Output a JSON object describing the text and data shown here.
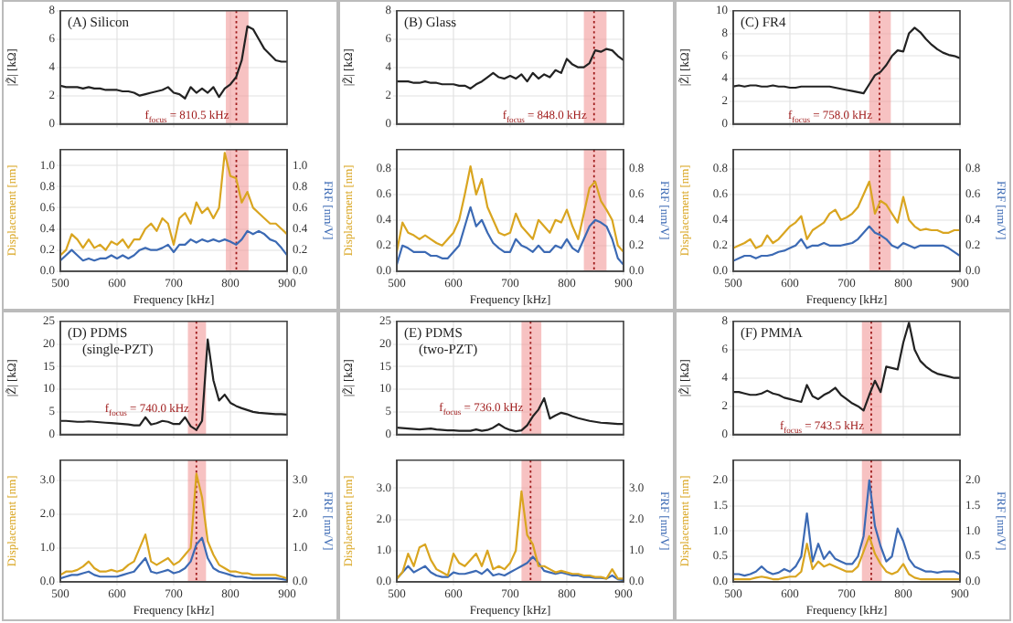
{
  "chart_data": [
    {
      "type": "line",
      "title": "(A) Silicon",
      "ylabel": "|Z̃| [kΩ]",
      "x": [
        500,
        510,
        520,
        530,
        540,
        550,
        560,
        570,
        580,
        590,
        600,
        610,
        620,
        630,
        640,
        650,
        660,
        670,
        680,
        690,
        700,
        710,
        720,
        730,
        740,
        750,
        760,
        770,
        780,
        790,
        800,
        810,
        820,
        830,
        840,
        850,
        860,
        870,
        880,
        890,
        900
      ],
      "values": [
        2.7,
        2.6,
        2.6,
        2.6,
        2.5,
        2.6,
        2.5,
        2.5,
        2.4,
        2.4,
        2.4,
        2.3,
        2.3,
        2.2,
        2.0,
        2.1,
        2.2,
        2.3,
        2.4,
        2.6,
        2.2,
        2.1,
        1.8,
        2.6,
        2.2,
        2.5,
        2.2,
        2.6,
        1.9,
        2.5,
        2.8,
        3.3,
        4.5,
        6.9,
        6.7,
        6.0,
        5.3,
        4.9,
        4.5,
        4.4,
        4.4
      ],
      "color": "#222222",
      "xlim": [
        500,
        900
      ],
      "xticks": [
        500,
        600,
        700,
        800,
        900
      ],
      "ylim": [
        0,
        8
      ],
      "yticks": [
        0,
        2,
        4,
        6,
        8
      ],
      "tick_labels": "y",
      "grid": true,
      "bands": [
        {
          "axis": "x",
          "from": 792,
          "to": 832,
          "color": "#f29a9a"
        }
      ],
      "ref_lines": [
        {
          "axis": "x",
          "value": 810.5,
          "label": "f$_{focus}$ = 810.5 kHz",
          "color": "#a01c1c",
          "line_style": "dotted"
        }
      ]
    },
    {
      "type": "line",
      "xlabel": "Frequency [kHz]",
      "ylabel": "Displacement [nm]",
      "y2label": "FRF [nm/V]",
      "x": [
        500,
        510,
        520,
        530,
        540,
        550,
        560,
        570,
        580,
        590,
        600,
        610,
        620,
        630,
        640,
        650,
        660,
        670,
        680,
        690,
        700,
        710,
        720,
        730,
        740,
        750,
        760,
        770,
        780,
        790,
        800,
        810,
        820,
        830,
        840,
        850,
        860,
        870,
        880,
        890,
        900
      ],
      "series": [
        {
          "color": "#d9a520",
          "values": [
            0.15,
            0.2,
            0.35,
            0.3,
            0.22,
            0.3,
            0.22,
            0.25,
            0.2,
            0.28,
            0.25,
            0.3,
            0.22,
            0.3,
            0.3,
            0.4,
            0.45,
            0.38,
            0.5,
            0.45,
            0.25,
            0.5,
            0.55,
            0.45,
            0.65,
            0.55,
            0.6,
            0.5,
            0.6,
            1.12,
            0.9,
            0.88,
            0.65,
            0.75,
            0.6,
            0.55,
            0.5,
            0.45,
            0.45,
            0.4,
            0.35
          ]
        },
        {
          "color": "#3c6ab4",
          "axis": "y2",
          "values": [
            0.1,
            0.15,
            0.2,
            0.15,
            0.1,
            0.12,
            0.1,
            0.12,
            0.12,
            0.15,
            0.12,
            0.15,
            0.12,
            0.15,
            0.2,
            0.22,
            0.2,
            0.2,
            0.22,
            0.25,
            0.18,
            0.25,
            0.25,
            0.3,
            0.27,
            0.3,
            0.28,
            0.3,
            0.28,
            0.3,
            0.28,
            0.25,
            0.3,
            0.38,
            0.35,
            0.38,
            0.35,
            0.3,
            0.28,
            0.22,
            0.15
          ]
        }
      ],
      "xlim": [
        500,
        900
      ],
      "xticks": [
        500,
        600,
        700,
        800,
        900
      ],
      "ylim": [
        0,
        1.15
      ],
      "yticks": [
        {
          "value": 0,
          "label": "0.0"
        },
        {
          "value": 0.2,
          "label": "0.2"
        },
        {
          "value": 0.4,
          "label": "0.4"
        },
        {
          "value": 0.6,
          "label": "0.6"
        },
        {
          "value": 0.8,
          "label": "0.8"
        },
        {
          "value": 1,
          "label": "1.0"
        }
      ],
      "y2lim": [
        0,
        1.15
      ],
      "y2ticks": [
        {
          "value": 0,
          "label": "0.0"
        },
        {
          "value": 0.2,
          "label": "0.2"
        },
        {
          "value": 0.4,
          "label": "0.4"
        },
        {
          "value": 0.6,
          "label": "0.6"
        },
        {
          "value": 0.8,
          "label": "0.8"
        },
        {
          "value": 1,
          "label": "1.0"
        }
      ],
      "grid": true,
      "bands": [
        {
          "axis": "x",
          "from": 792,
          "to": 832,
          "color": "#f29a9a"
        }
      ],
      "ref_lines": [
        {
          "axis": "x",
          "value": 810.5,
          "color": "#a01c1c",
          "line_style": "dotted"
        }
      ]
    },
    {
      "type": "line",
      "title": "(B) Glass",
      "ylabel": "|Z̃| [kΩ]",
      "x": [
        500,
        510,
        520,
        530,
        540,
        550,
        560,
        570,
        580,
        590,
        600,
        610,
        620,
        630,
        640,
        650,
        660,
        670,
        680,
        690,
        700,
        710,
        720,
        730,
        740,
        750,
        760,
        770,
        780,
        790,
        800,
        810,
        820,
        830,
        840,
        850,
        860,
        870,
        880,
        890,
        900
      ],
      "values": [
        3.0,
        3.0,
        3.0,
        2.9,
        2.9,
        3.0,
        2.9,
        2.9,
        2.8,
        2.8,
        2.8,
        2.7,
        2.7,
        2.5,
        2.8,
        3.0,
        3.3,
        3.6,
        3.3,
        3.2,
        3.4,
        3.2,
        3.5,
        3.0,
        3.6,
        3.2,
        3.5,
        3.3,
        3.8,
        3.6,
        4.6,
        4.2,
        4.0,
        4.0,
        4.3,
        5.2,
        5.1,
        5.3,
        5.2,
        4.8,
        4.5
      ],
      "color": "#222222",
      "xlim": [
        500,
        900
      ],
      "xticks": [
        500,
        600,
        700,
        800,
        900
      ],
      "ylim": [
        0,
        8
      ],
      "yticks": [
        0,
        2,
        4,
        6,
        8
      ],
      "tick_labels": "y",
      "grid": true,
      "bands": [
        {
          "axis": "x",
          "from": 830,
          "to": 870,
          "color": "#f29a9a"
        }
      ],
      "ref_lines": [
        {
          "axis": "x",
          "value": 848.0,
          "label": "f$_{focus}$ = 848.0 kHz",
          "color": "#a01c1c",
          "line_style": "dotted"
        }
      ]
    },
    {
      "type": "line",
      "xlabel": "Frequency [kHz]",
      "ylabel": "Displacement [nm]",
      "y2label": "FRF [nm/V]",
      "x": [
        500,
        510,
        520,
        530,
        540,
        550,
        560,
        570,
        580,
        590,
        600,
        610,
        620,
        630,
        640,
        650,
        660,
        670,
        680,
        690,
        700,
        710,
        720,
        730,
        740,
        750,
        760,
        770,
        780,
        790,
        800,
        810,
        820,
        830,
        840,
        850,
        860,
        870,
        880,
        890,
        900
      ],
      "series": [
        {
          "color": "#d9a520",
          "values": [
            0.15,
            0.38,
            0.3,
            0.28,
            0.25,
            0.28,
            0.25,
            0.22,
            0.2,
            0.25,
            0.3,
            0.4,
            0.6,
            0.82,
            0.6,
            0.72,
            0.5,
            0.4,
            0.3,
            0.28,
            0.3,
            0.45,
            0.35,
            0.3,
            0.25,
            0.4,
            0.35,
            0.3,
            0.4,
            0.38,
            0.48,
            0.35,
            0.25,
            0.45,
            0.65,
            0.7,
            0.55,
            0.48,
            0.4,
            0.2,
            0.15
          ]
        },
        {
          "color": "#3c6ab4",
          "axis": "y2",
          "values": [
            0.05,
            0.2,
            0.18,
            0.15,
            0.15,
            0.15,
            0.12,
            0.12,
            0.1,
            0.1,
            0.15,
            0.2,
            0.35,
            0.5,
            0.35,
            0.4,
            0.3,
            0.22,
            0.18,
            0.15,
            0.15,
            0.25,
            0.2,
            0.18,
            0.15,
            0.2,
            0.15,
            0.15,
            0.2,
            0.18,
            0.25,
            0.18,
            0.15,
            0.25,
            0.35,
            0.4,
            0.38,
            0.35,
            0.25,
            0.1,
            0.05
          ]
        }
      ],
      "xlim": [
        500,
        900
      ],
      "xticks": [
        500,
        600,
        700,
        800,
        900
      ],
      "ylim": [
        0,
        0.95
      ],
      "yticks": [
        {
          "value": 0,
          "label": "0.0"
        },
        {
          "value": 0.2,
          "label": "0.2"
        },
        {
          "value": 0.4,
          "label": "0.4"
        },
        {
          "value": 0.6,
          "label": "0.6"
        },
        {
          "value": 0.8,
          "label": "0.8"
        }
      ],
      "y2lim": [
        0,
        0.95
      ],
      "y2ticks": [
        {
          "value": 0,
          "label": "0.0"
        },
        {
          "value": 0.2,
          "label": "0.2"
        },
        {
          "value": 0.4,
          "label": "0.4"
        },
        {
          "value": 0.6,
          "label": "0.6"
        },
        {
          "value": 0.8,
          "label": "0.8"
        }
      ],
      "grid": true,
      "bands": [
        {
          "axis": "x",
          "from": 830,
          "to": 870,
          "color": "#f29a9a"
        }
      ],
      "ref_lines": [
        {
          "axis": "x",
          "value": 848.0,
          "color": "#a01c1c",
          "line_style": "dotted"
        }
      ]
    },
    {
      "type": "line",
      "title": "(C) FR4",
      "ylabel": "|Z̃| [kΩ]",
      "x": [
        500,
        510,
        520,
        530,
        540,
        550,
        560,
        570,
        580,
        590,
        600,
        610,
        620,
        630,
        640,
        650,
        660,
        670,
        680,
        690,
        700,
        710,
        720,
        730,
        740,
        750,
        760,
        770,
        780,
        790,
        800,
        810,
        820,
        830,
        840,
        850,
        860,
        870,
        880,
        890,
        900
      ],
      "values": [
        3.3,
        3.4,
        3.3,
        3.4,
        3.4,
        3.3,
        3.3,
        3.4,
        3.3,
        3.3,
        3.2,
        3.2,
        3.3,
        3.3,
        3.3,
        3.3,
        3.3,
        3.3,
        3.2,
        3.1,
        3.0,
        2.9,
        2.8,
        2.7,
        3.5,
        4.3,
        4.6,
        5.2,
        6.0,
        6.5,
        6.4,
        8.0,
        8.5,
        8.1,
        7.5,
        7.0,
        6.6,
        6.3,
        6.1,
        6.0,
        5.8
      ],
      "color": "#222222",
      "xlim": [
        500,
        900
      ],
      "xticks": [
        500,
        600,
        700,
        800,
        900
      ],
      "ylim": [
        0,
        10
      ],
      "yticks": [
        0,
        2,
        4,
        6,
        8,
        10
      ],
      "tick_labels": "y",
      "grid": true,
      "bands": [
        {
          "axis": "x",
          "from": 740,
          "to": 778,
          "color": "#f29a9a"
        }
      ],
      "ref_lines": [
        {
          "axis": "x",
          "value": 758.0,
          "label": "f$_{focus}$ = 758.0 kHz",
          "color": "#a01c1c",
          "line_style": "dotted"
        }
      ]
    },
    {
      "type": "line",
      "xlabel": "Frequency [kHz]",
      "ylabel": "Displacement [nm]",
      "y2label": "FRF [nm/V]",
      "x": [
        500,
        510,
        520,
        530,
        540,
        550,
        560,
        570,
        580,
        590,
        600,
        610,
        620,
        630,
        640,
        650,
        660,
        670,
        680,
        690,
        700,
        710,
        720,
        730,
        740,
        750,
        760,
        770,
        780,
        790,
        800,
        810,
        820,
        830,
        840,
        850,
        860,
        870,
        880,
        890,
        900
      ],
      "series": [
        {
          "color": "#d9a520",
          "values": [
            0.18,
            0.2,
            0.22,
            0.25,
            0.18,
            0.2,
            0.28,
            0.22,
            0.25,
            0.3,
            0.35,
            0.38,
            0.43,
            0.25,
            0.32,
            0.35,
            0.38,
            0.45,
            0.48,
            0.4,
            0.42,
            0.45,
            0.5,
            0.6,
            0.7,
            0.45,
            0.55,
            0.52,
            0.45,
            0.38,
            0.58,
            0.4,
            0.35,
            0.32,
            0.33,
            0.32,
            0.32,
            0.3,
            0.3,
            0.32,
            0.32
          ]
        },
        {
          "color": "#3c6ab4",
          "axis": "y2",
          "values": [
            0.08,
            0.1,
            0.12,
            0.12,
            0.1,
            0.12,
            0.12,
            0.13,
            0.15,
            0.16,
            0.18,
            0.2,
            0.25,
            0.18,
            0.2,
            0.2,
            0.22,
            0.2,
            0.2,
            0.2,
            0.21,
            0.22,
            0.25,
            0.3,
            0.35,
            0.3,
            0.28,
            0.25,
            0.2,
            0.18,
            0.22,
            0.2,
            0.18,
            0.2,
            0.2,
            0.2,
            0.2,
            0.2,
            0.18,
            0.15,
            0.12
          ]
        }
      ],
      "xlim": [
        500,
        900
      ],
      "xticks": [
        500,
        600,
        700,
        800,
        900
      ],
      "ylim": [
        0,
        0.95
      ],
      "yticks": [
        {
          "value": 0,
          "label": "0.0"
        },
        {
          "value": 0.2,
          "label": "0.2"
        },
        {
          "value": 0.4,
          "label": "0.4"
        },
        {
          "value": 0.6,
          "label": "0.6"
        },
        {
          "value": 0.8,
          "label": "0.8"
        }
      ],
      "y2lim": [
        0,
        0.95
      ],
      "y2ticks": [
        {
          "value": 0,
          "label": "0.0"
        },
        {
          "value": 0.2,
          "label": "0.2"
        },
        {
          "value": 0.4,
          "label": "0.4"
        },
        {
          "value": 0.6,
          "label": "0.6"
        },
        {
          "value": 0.8,
          "label": "0.8"
        }
      ],
      "grid": true,
      "bands": [
        {
          "axis": "x",
          "from": 740,
          "to": 778,
          "color": "#f29a9a"
        }
      ],
      "ref_lines": [
        {
          "axis": "x",
          "value": 758.0,
          "color": "#a01c1c",
          "line_style": "dotted"
        }
      ]
    },
    {
      "type": "line",
      "title": "(D) PDMS (single-PZT)",
      "ylabel": "|Z̃| [kΩ]",
      "x": [
        500,
        510,
        520,
        530,
        540,
        550,
        560,
        570,
        580,
        590,
        600,
        610,
        620,
        630,
        640,
        650,
        660,
        670,
        680,
        690,
        700,
        710,
        720,
        730,
        740,
        750,
        760,
        770,
        780,
        790,
        800,
        810,
        820,
        830,
        840,
        850,
        860,
        870,
        880,
        890,
        900
      ],
      "values": [
        3.0,
        3.0,
        2.9,
        2.8,
        2.8,
        2.9,
        2.8,
        2.7,
        2.6,
        2.5,
        2.4,
        2.3,
        2.2,
        2.0,
        2.0,
        3.8,
        2.2,
        2.5,
        3.0,
        2.8,
        2.3,
        2.3,
        3.8,
        1.8,
        1.0,
        3.0,
        21.0,
        12.0,
        7.5,
        8.8,
        7.0,
        6.3,
        5.8,
        5.4,
        5.0,
        4.8,
        4.7,
        4.6,
        4.5,
        4.5,
        4.4
      ],
      "color": "#222222",
      "xlim": [
        500,
        900
      ],
      "xticks": [
        500,
        600,
        700,
        800,
        900
      ],
      "ylim": [
        0,
        25
      ],
      "yticks": [
        0,
        5,
        10,
        15,
        20,
        25
      ],
      "tick_labels": "y",
      "grid": true,
      "bands": [
        {
          "axis": "x",
          "from": 725,
          "to": 757,
          "color": "#f29a9a"
        }
      ],
      "ref_lines": [
        {
          "axis": "x",
          "value": 740.0,
          "label": "f$_{focus}$ = 740.0 kHz",
          "color": "#a01c1c",
          "line_style": "dotted"
        }
      ]
    },
    {
      "type": "line",
      "xlabel": "Frequency [kHz]",
      "ylabel": "Displacement [nm]",
      "y2label": "FRF [nm/V]",
      "x": [
        500,
        510,
        520,
        530,
        540,
        550,
        560,
        570,
        580,
        590,
        600,
        610,
        620,
        630,
        640,
        650,
        660,
        670,
        680,
        690,
        700,
        710,
        720,
        730,
        740,
        750,
        760,
        770,
        780,
        790,
        800,
        810,
        820,
        830,
        840,
        850,
        860,
        870,
        880,
        890,
        900
      ],
      "series": [
        {
          "color": "#d9a520",
          "values": [
            0.2,
            0.3,
            0.3,
            0.35,
            0.45,
            0.6,
            0.4,
            0.3,
            0.3,
            0.35,
            0.3,
            0.35,
            0.5,
            0.6,
            1.0,
            1.4,
            0.6,
            0.5,
            0.6,
            0.7,
            0.5,
            0.6,
            0.8,
            1.0,
            3.2,
            2.5,
            1.2,
            0.8,
            0.5,
            0.4,
            0.3,
            0.3,
            0.25,
            0.25,
            0.2,
            0.2,
            0.2,
            0.2,
            0.2,
            0.15,
            0.1
          ]
        },
        {
          "color": "#3c6ab4",
          "axis": "y2",
          "values": [
            0.1,
            0.15,
            0.2,
            0.2,
            0.25,
            0.3,
            0.2,
            0.15,
            0.15,
            0.15,
            0.15,
            0.2,
            0.25,
            0.3,
            0.5,
            0.7,
            0.3,
            0.25,
            0.3,
            0.35,
            0.25,
            0.3,
            0.4,
            0.6,
            1.1,
            1.3,
            0.7,
            0.4,
            0.3,
            0.25,
            0.2,
            0.15,
            0.15,
            0.12,
            0.1,
            0.1,
            0.1,
            0.1,
            0.1,
            0.08,
            0.05
          ]
        }
      ],
      "xlim": [
        500,
        900
      ],
      "xticks": [
        500,
        600,
        700,
        800,
        900
      ],
      "ylim": [
        0,
        3.6
      ],
      "yticks": [
        {
          "value": 0,
          "label": "0.0"
        },
        {
          "value": 1,
          "label": "1.0"
        },
        {
          "value": 2,
          "label": "2.0"
        },
        {
          "value": 3,
          "label": "3.0"
        }
      ],
      "y2lim": [
        0,
        3.6
      ],
      "y2ticks": [
        {
          "value": 0,
          "label": "0.0"
        },
        {
          "value": 1,
          "label": "1.0"
        },
        {
          "value": 2,
          "label": "2.0"
        },
        {
          "value": 3,
          "label": "3.0"
        }
      ],
      "grid": true,
      "bands": [
        {
          "axis": "x",
          "from": 725,
          "to": 757,
          "color": "#f29a9a"
        }
      ],
      "ref_lines": [
        {
          "axis": "x",
          "value": 740.0,
          "color": "#a01c1c",
          "line_style": "dotted"
        }
      ]
    },
    {
      "type": "line",
      "title": "(E) PDMS (two-PZT)",
      "ylabel": "|Z̃| [kΩ]",
      "x": [
        500,
        510,
        520,
        530,
        540,
        550,
        560,
        570,
        580,
        590,
        600,
        610,
        620,
        630,
        640,
        650,
        660,
        670,
        680,
        690,
        700,
        710,
        720,
        730,
        740,
        750,
        760,
        770,
        780,
        790,
        800,
        810,
        820,
        830,
        840,
        850,
        860,
        870,
        880,
        890,
        900
      ],
      "values": [
        1.5,
        1.4,
        1.3,
        1.2,
        1.1,
        1.2,
        1.3,
        1.1,
        1.0,
        0.9,
        0.9,
        0.8,
        0.8,
        0.8,
        1.1,
        0.8,
        1.0,
        1.5,
        2.3,
        1.5,
        1.0,
        0.7,
        0.9,
        2.0,
        4.0,
        5.5,
        8.0,
        3.5,
        4.2,
        4.8,
        4.5,
        4.0,
        3.6,
        3.3,
        3.0,
        2.8,
        2.6,
        2.5,
        2.4,
        2.3,
        2.3
      ],
      "color": "#222222",
      "xlim": [
        500,
        900
      ],
      "xticks": [
        500,
        600,
        700,
        800,
        900
      ],
      "ylim": [
        0,
        25
      ],
      "yticks": [
        0,
        5,
        10,
        15,
        20,
        25
      ],
      "tick_labels": "y",
      "grid": true,
      "bands": [
        {
          "axis": "x",
          "from": 720,
          "to": 755,
          "color": "#f29a9a"
        }
      ],
      "ref_lines": [
        {
          "axis": "x",
          "value": 736.0,
          "label": "f$_{focus}$ = 736.0 kHz",
          "color": "#a01c1c",
          "line_style": "dotted"
        }
      ]
    },
    {
      "type": "line",
      "xlabel": "Frequency [kHz]",
      "ylabel": "Displacement [nm]",
      "y2label": "FRF [nm/V]",
      "x": [
        500,
        510,
        520,
        530,
        540,
        550,
        560,
        570,
        580,
        590,
        600,
        610,
        620,
        630,
        640,
        650,
        660,
        670,
        680,
        690,
        700,
        710,
        720,
        730,
        740,
        750,
        760,
        770,
        780,
        790,
        800,
        810,
        820,
        830,
        840,
        850,
        860,
        870,
        880,
        890,
        900
      ],
      "series": [
        {
          "color": "#d9a520",
          "values": [
            0.1,
            0.3,
            0.9,
            0.5,
            1.1,
            1.2,
            0.7,
            0.4,
            0.3,
            0.2,
            0.9,
            0.6,
            0.5,
            0.7,
            0.9,
            0.5,
            1.0,
            0.4,
            0.5,
            0.4,
            0.6,
            1.0,
            2.9,
            1.5,
            1.2,
            0.5,
            0.5,
            0.4,
            0.3,
            0.35,
            0.3,
            0.25,
            0.25,
            0.2,
            0.2,
            0.15,
            0.15,
            0.1,
            0.4,
            0.1,
            0.1
          ]
        },
        {
          "color": "#3c6ab4",
          "axis": "y2",
          "values": [
            0.1,
            0.3,
            0.5,
            0.3,
            0.4,
            0.5,
            0.3,
            0.2,
            0.15,
            0.15,
            0.3,
            0.25,
            0.25,
            0.3,
            0.35,
            0.25,
            0.4,
            0.2,
            0.25,
            0.2,
            0.3,
            0.4,
            0.5,
            0.6,
            0.8,
            0.6,
            0.35,
            0.3,
            0.25,
            0.3,
            0.25,
            0.2,
            0.2,
            0.15,
            0.15,
            0.12,
            0.12,
            0.1,
            0.2,
            0.08,
            0.05
          ]
        }
      ],
      "xlim": [
        500,
        900
      ],
      "xticks": [
        500,
        600,
        700,
        800,
        900
      ],
      "ylim": [
        0,
        3.9
      ],
      "yticks": [
        {
          "value": 0,
          "label": "0.0"
        },
        {
          "value": 1,
          "label": "1.0"
        },
        {
          "value": 2,
          "label": "2.0"
        },
        {
          "value": 3,
          "label": "3.0"
        }
      ],
      "y2lim": [
        0,
        3.9
      ],
      "y2ticks": [
        {
          "value": 0,
          "label": "0.0"
        },
        {
          "value": 1,
          "label": "1.0"
        },
        {
          "value": 2,
          "label": "2.0"
        },
        {
          "value": 3,
          "label": "3.0"
        }
      ],
      "grid": true,
      "bands": [
        {
          "axis": "x",
          "from": 720,
          "to": 755,
          "color": "#f29a9a"
        }
      ],
      "ref_lines": [
        {
          "axis": "x",
          "value": 736.0,
          "color": "#a01c1c",
          "line_style": "dotted"
        }
      ]
    },
    {
      "type": "line",
      "title": "(F) PMMA",
      "ylabel": "|Z̃| [kΩ]",
      "x": [
        500,
        510,
        520,
        530,
        540,
        550,
        560,
        570,
        580,
        590,
        600,
        610,
        620,
        630,
        640,
        650,
        660,
        670,
        680,
        690,
        700,
        710,
        720,
        730,
        740,
        750,
        760,
        770,
        780,
        790,
        800,
        810,
        820,
        830,
        840,
        850,
        860,
        870,
        880,
        890,
        900
      ],
      "values": [
        3.0,
        3.0,
        2.9,
        2.8,
        2.8,
        2.9,
        3.1,
        2.9,
        2.8,
        2.6,
        2.5,
        2.4,
        2.3,
        3.5,
        2.7,
        2.5,
        2.8,
        3.0,
        3.3,
        2.8,
        2.5,
        2.2,
        2.0,
        1.7,
        2.8,
        3.8,
        3.0,
        4.8,
        4.7,
        4.6,
        6.5,
        7.9,
        6.0,
        5.2,
        4.8,
        4.5,
        4.3,
        4.2,
        4.1,
        4.0,
        4.0
      ],
      "color": "#222222",
      "xlim": [
        500,
        900
      ],
      "xticks": [
        500,
        600,
        700,
        800,
        900
      ],
      "ylim": [
        0,
        8
      ],
      "yticks": [
        0,
        2,
        4,
        6,
        8
      ],
      "tick_labels": "y",
      "grid": true,
      "bands": [
        {
          "axis": "x",
          "from": 727,
          "to": 762,
          "color": "#f29a9a"
        }
      ],
      "ref_lines": [
        {
          "axis": "x",
          "value": 743.5,
          "label": "f$_{focus}$ = 743.5 kHz",
          "color": "#a01c1c",
          "line_style": "dotted"
        }
      ]
    },
    {
      "type": "line",
      "xlabel": "Frequency [kHz]",
      "ylabel": "Displacement [nm]",
      "y2label": "FRF [nm/V]",
      "x": [
        500,
        510,
        520,
        530,
        540,
        550,
        560,
        570,
        580,
        590,
        600,
        610,
        620,
        630,
        640,
        650,
        660,
        670,
        680,
        690,
        700,
        710,
        720,
        730,
        740,
        750,
        760,
        770,
        780,
        790,
        800,
        810,
        820,
        830,
        840,
        850,
        860,
        870,
        880,
        890,
        900
      ],
      "series": [
        {
          "color": "#d9a520",
          "values": [
            0.05,
            0.05,
            0.05,
            0.05,
            0.08,
            0.1,
            0.08,
            0.05,
            0.05,
            0.08,
            0.1,
            0.1,
            0.2,
            0.75,
            0.25,
            0.4,
            0.3,
            0.35,
            0.3,
            0.25,
            0.2,
            0.2,
            0.3,
            0.6,
            0.9,
            0.55,
            0.35,
            0.2,
            0.15,
            0.2,
            0.35,
            0.15,
            0.08,
            0.05,
            0.05,
            0.05,
            0.05,
            0.05,
            0.05,
            0.05,
            0.05
          ]
        },
        {
          "color": "#3c6ab4",
          "axis": "y2",
          "values": [
            0.15,
            0.15,
            0.12,
            0.15,
            0.2,
            0.3,
            0.2,
            0.15,
            0.18,
            0.25,
            0.2,
            0.3,
            0.5,
            1.35,
            0.4,
            0.75,
            0.45,
            0.6,
            0.45,
            0.4,
            0.35,
            0.35,
            0.5,
            0.9,
            2.0,
            1.1,
            0.7,
            0.4,
            0.5,
            1.05,
            0.8,
            0.45,
            0.3,
            0.25,
            0.2,
            0.2,
            0.18,
            0.2,
            0.2,
            0.2,
            0.15
          ]
        }
      ],
      "xlim": [
        500,
        900
      ],
      "xticks": [
        500,
        600,
        700,
        800,
        900
      ],
      "ylim": [
        0,
        2.4
      ],
      "yticks": [
        {
          "value": 0,
          "label": "0.0"
        },
        {
          "value": 0.5,
          "label": "0.5"
        },
        {
          "value": 1,
          "label": "1.0"
        },
        {
          "value": 1.5,
          "label": "1.5"
        },
        {
          "value": 2,
          "label": "2.0"
        }
      ],
      "y2lim": [
        0,
        2.4
      ],
      "y2ticks": [
        {
          "value": 0,
          "label": "0.0"
        },
        {
          "value": 0.5,
          "label": "0.5"
        },
        {
          "value": 1,
          "label": "1.0"
        },
        {
          "value": 1.5,
          "label": "1.5"
        },
        {
          "value": 2,
          "label": "2.0"
        }
      ],
      "grid": true,
      "bands": [
        {
          "axis": "x",
          "from": 727,
          "to": 762,
          "color": "#f29a9a"
        }
      ],
      "ref_lines": [
        {
          "axis": "x",
          "value": 743.5,
          "color": "#a01c1c",
          "line_style": "dotted"
        }
      ]
    }
  ]
}
